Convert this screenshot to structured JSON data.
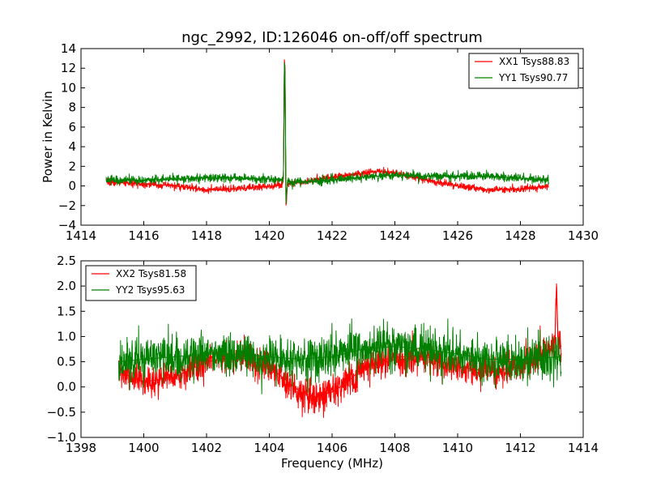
{
  "colors": {
    "red_series": "#ff0000",
    "green_series": "#008000"
  },
  "chart_data": [
    {
      "type": "line",
      "title": "ngc_2992, ID:126046 on-off/off spectrum",
      "ylabel": "Power in Kelvin",
      "xlabel": "",
      "xlim": [
        1414,
        1430
      ],
      "ylim": [
        -4,
        14
      ],
      "xticks": [
        "1414",
        "1416",
        "1418",
        "1420",
        "1422",
        "1424",
        "1426",
        "1428",
        "1430"
      ],
      "yticks": [
        "−4",
        "−2",
        "0",
        "2",
        "4",
        "6",
        "8",
        "10",
        "12",
        "14"
      ],
      "legend_position": "top-right",
      "series": [
        {
          "name": "XX1 Tsys88.83",
          "color": "#ff0000",
          "noise": 0.18,
          "x": [
            1414.8,
            1416,
            1417,
            1418,
            1419,
            1420,
            1420.4,
            1420.45,
            1420.48,
            1420.5,
            1420.53,
            1420.58,
            1420.65,
            1421,
            1422,
            1423,
            1423.5,
            1424,
            1425,
            1426,
            1427,
            1428,
            1428.9
          ],
          "values": [
            0.4,
            0.2,
            0.0,
            -0.4,
            -0.3,
            0.0,
            0.1,
            0.8,
            12.9,
            12.0,
            -2.0,
            0.2,
            0.3,
            0.4,
            0.9,
            1.3,
            1.5,
            1.3,
            0.6,
            0.0,
            -0.4,
            -0.3,
            0.0
          ]
        },
        {
          "name": "YY1 Tsys90.77",
          "color": "#008000",
          "noise": 0.22,
          "x": [
            1414.8,
            1416,
            1417,
            1418,
            1419,
            1420,
            1420.4,
            1420.45,
            1420.48,
            1420.5,
            1420.53,
            1420.58,
            1420.65,
            1421,
            1422,
            1423,
            1424,
            1425,
            1426,
            1427,
            1428,
            1428.9
          ],
          "values": [
            0.6,
            0.6,
            0.7,
            0.8,
            0.8,
            0.7,
            0.6,
            1.0,
            12.6,
            11.5,
            -1.5,
            0.4,
            0.4,
            0.4,
            0.6,
            0.9,
            1.1,
            1.0,
            1.0,
            1.0,
            0.8,
            0.6
          ]
        }
      ]
    },
    {
      "type": "line",
      "title": "",
      "ylabel": "",
      "xlabel": "Frequency (MHz)",
      "xlim": [
        1398,
        1414
      ],
      "ylim": [
        -1.0,
        2.5
      ],
      "xticks": [
        "1398",
        "1400",
        "1402",
        "1404",
        "1406",
        "1408",
        "1410",
        "1412",
        "1414"
      ],
      "yticks": [
        "−1.0",
        "−0.5",
        "0.0",
        "0.5",
        "1.0",
        "1.5",
        "2.0",
        "2.5"
      ],
      "legend_position": "top-left",
      "series": [
        {
          "name": "XX2 Tsys81.58",
          "color": "#ff0000",
          "noise": 0.16,
          "x": [
            1399.2,
            1400,
            1401,
            1402,
            1403,
            1404,
            1404.5,
            1405,
            1405.5,
            1406,
            1406.5,
            1407,
            1408,
            1409,
            1410,
            1411,
            1412,
            1412.8,
            1413.1,
            1413.15,
            1413.2,
            1413.3
          ],
          "values": [
            0.3,
            0.1,
            0.2,
            0.5,
            0.6,
            0.4,
            0.15,
            -0.1,
            -0.2,
            -0.1,
            0.1,
            0.4,
            0.6,
            0.6,
            0.4,
            0.3,
            0.4,
            0.7,
            0.9,
            2.05,
            0.9,
            0.8
          ]
        },
        {
          "name": "YY2 Tsys95.63",
          "color": "#008000",
          "noise": 0.22,
          "x": [
            1399.2,
            1400,
            1401,
            1402,
            1403,
            1404,
            1405,
            1406,
            1407,
            1408,
            1409,
            1410,
            1411,
            1412,
            1413.3
          ],
          "values": [
            0.5,
            0.55,
            0.6,
            0.65,
            0.65,
            0.6,
            0.55,
            0.6,
            0.75,
            0.8,
            0.75,
            0.65,
            0.55,
            0.55,
            0.6
          ]
        }
      ]
    }
  ]
}
